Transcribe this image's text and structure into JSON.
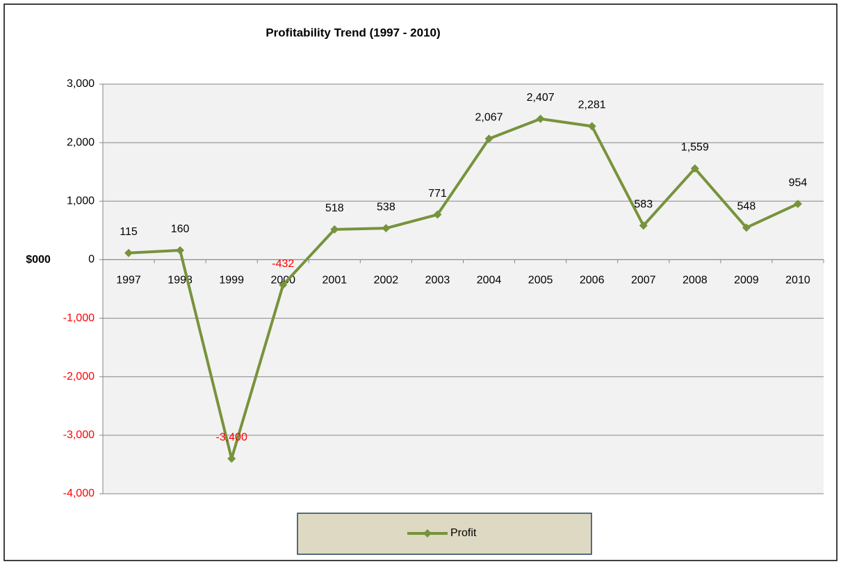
{
  "chart_data": {
    "type": "line",
    "title": "Profitability Trend (1997 - 2010)",
    "ylabel": "$000",
    "categories": [
      "1997",
      "1998",
      "1999",
      "2000",
      "2001",
      "2002",
      "2003",
      "2004",
      "2005",
      "2006",
      "2007",
      "2008",
      "2009",
      "2010"
    ],
    "series": [
      {
        "name": "Profit",
        "color": "#77933c",
        "values": [
          115,
          160,
          -3400,
          -432,
          518,
          538,
          771,
          2067,
          2407,
          2281,
          583,
          1559,
          548,
          954
        ],
        "value_labels": [
          "115",
          "160",
          "-3,400",
          "-432",
          "518",
          "538",
          "771",
          "2,067",
          "2,407",
          "2,281",
          "583",
          "1,559",
          "548",
          "954"
        ]
      }
    ],
    "ylim": [
      -4000,
      3000
    ],
    "yticks": [
      {
        "value": -4000,
        "label": "-4,000"
      },
      {
        "value": -3000,
        "label": "-3,000"
      },
      {
        "value": -2000,
        "label": "-2,000"
      },
      {
        "value": -1000,
        "label": "-1,000"
      },
      0,
      {
        "value": 1000,
        "label": "1,000"
      },
      {
        "value": 2000,
        "label": "2,000"
      },
      {
        "value": 3000,
        "label": "3,000"
      }
    ],
    "grid": true,
    "negative_color": "#ff0000",
    "legend": "bottom"
  }
}
